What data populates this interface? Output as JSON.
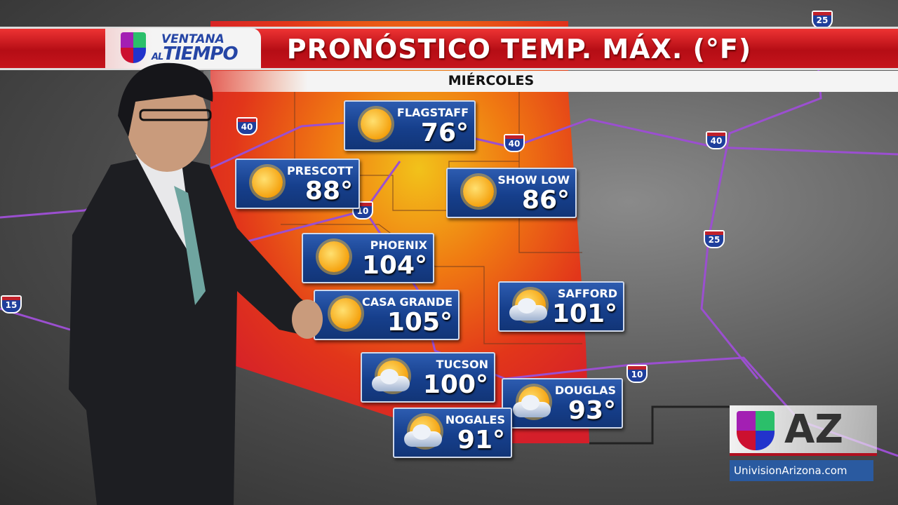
{
  "header": {
    "brand_line1": "VENTANA",
    "brand_line2_prefix": "AL",
    "brand_line2": "TIEMPO",
    "title": "PRONÓSTICO TEMP. MÁX. (°F)",
    "day": "MIÉRCOLES"
  },
  "colors": {
    "banner_red": "#c6141c",
    "card_blue": "#163f8c",
    "az_blue": "#2a5aa0"
  },
  "forecasts": [
    {
      "city": "FLAGSTAFF",
      "temp": "76°",
      "icon": "sun-icon"
    },
    {
      "city": "PRESCOTT",
      "temp": "88°",
      "icon": "sun-icon"
    },
    {
      "city": "SHOW LOW",
      "temp": "86°",
      "icon": "sun-icon"
    },
    {
      "city": "PHOENIX",
      "temp": "104°",
      "icon": "sun-icon"
    },
    {
      "city": "CASA GRANDE",
      "temp": "105°",
      "icon": "sun-icon"
    },
    {
      "city": "SAFFORD",
      "temp": "101°",
      "icon": "partly-cloudy-icon"
    },
    {
      "city": "TUCSON",
      "temp": "100°",
      "icon": "partly-cloudy-icon"
    },
    {
      "city": "DOUGLAS",
      "temp": "93°",
      "icon": "partly-cloudy-icon"
    },
    {
      "city": "NOGALES",
      "temp": "91°",
      "icon": "partly-cloudy-icon"
    }
  ],
  "highways": [
    "40",
    "40",
    "40",
    "10",
    "10",
    "25",
    "25",
    "15"
  ],
  "station": {
    "logo": "AZ",
    "url": "UnivisionArizona.com"
  }
}
